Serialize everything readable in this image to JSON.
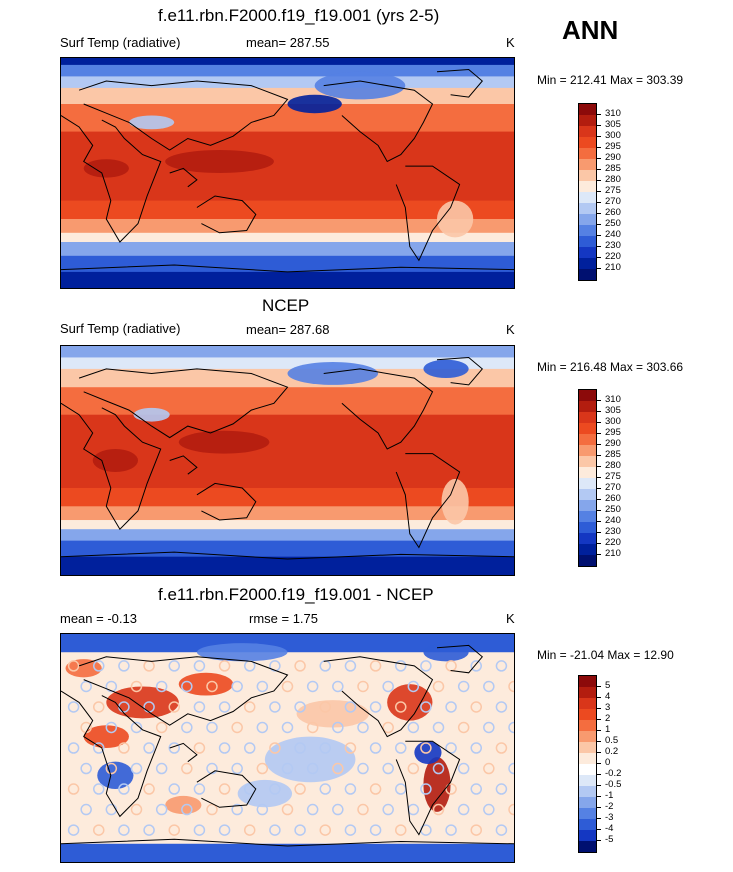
{
  "corner_label": "ANN",
  "chart_data": [
    {
      "type": "heatmap",
      "title": "f.e11.rbn.F2000.f19_f19.001 (yrs 2-5)",
      "left_label": "Surf Temp (radiative)",
      "center_label": "mean= 287.55",
      "units": "K",
      "minmax": "Min = 212.41 Max = 303.39",
      "min": 212.41,
      "max": 303.39,
      "mean": 287.55,
      "colorbar": {
        "levels": [
          "310",
          "305",
          "300",
          "295",
          "290",
          "285",
          "280",
          "275",
          "270",
          "260",
          "250",
          "240",
          "230",
          "220",
          "210"
        ],
        "colors": [
          "#8c0a0a",
          "#b31d0f",
          "#d9361a",
          "#ec4a20",
          "#f46d3f",
          "#f89a6f",
          "#fbc7a7",
          "#fdebdc",
          "#dde8f8",
          "#b3c9f3",
          "#85a6eb",
          "#5581e3",
          "#2e5cd6",
          "#1437c2",
          "#00209c",
          "#001070"
        ]
      }
    },
    {
      "type": "heatmap",
      "title": "NCEP",
      "left_label": "Surf Temp (radiative)",
      "center_label": "mean= 287.68",
      "units": "K",
      "minmax": "Min = 216.48 Max = 303.66",
      "min": 216.48,
      "max": 303.66,
      "mean": 287.68,
      "colorbar": {
        "levels": [
          "310",
          "305",
          "300",
          "295",
          "290",
          "285",
          "280",
          "275",
          "270",
          "260",
          "250",
          "240",
          "230",
          "220",
          "210"
        ],
        "colors": [
          "#8c0a0a",
          "#b31d0f",
          "#d9361a",
          "#ec4a20",
          "#f46d3f",
          "#f89a6f",
          "#fbc7a7",
          "#fdebdc",
          "#dde8f8",
          "#b3c9f3",
          "#85a6eb",
          "#5581e3",
          "#2e5cd6",
          "#1437c2",
          "#00209c",
          "#001070"
        ]
      }
    },
    {
      "type": "heatmap",
      "title": "f.e11.rbn.F2000.f19_f19.001 - NCEP",
      "left_label": "mean =  -0.13",
      "center_label": "rmse =   1.75",
      "units": "K",
      "minmax": "Min = -21.04 Max =  12.90",
      "min": -21.04,
      "max": 12.9,
      "mean": -0.13,
      "rmse": 1.75,
      "colorbar": {
        "levels": [
          "5",
          "4",
          "3",
          "2",
          "1",
          "0.5",
          "0.2",
          "0",
          "-0.2",
          "-0.5",
          "-1",
          "-2",
          "-3",
          "-4",
          "-5"
        ],
        "colors": [
          "#8c0a0a",
          "#b31d0f",
          "#d9361a",
          "#ec4a20",
          "#f46d3f",
          "#f89a6f",
          "#fbc7a7",
          "#fdebdc",
          "#ffffff",
          "#dde8f8",
          "#b3c9f3",
          "#85a6eb",
          "#5581e3",
          "#2e5cd6",
          "#1437c2",
          "#001070"
        ]
      }
    }
  ]
}
